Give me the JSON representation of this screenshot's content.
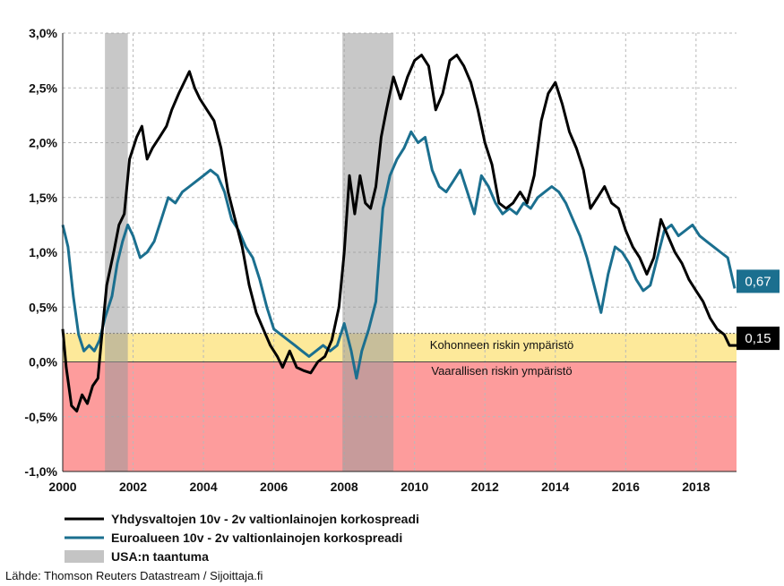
{
  "chart_data": {
    "type": "line",
    "ylim": [
      -1.0,
      3.0
    ],
    "xlim": [
      2000,
      2019.15
    ],
    "y_ticks": [
      "-1,0%",
      "-0,5%",
      "0,0%",
      "0,5%",
      "1,0%",
      "1,5%",
      "2,0%",
      "2,5%",
      "3,0%"
    ],
    "y_tick_values": [
      -1.0,
      -0.5,
      0.0,
      0.5,
      1.0,
      1.5,
      2.0,
      2.5,
      3.0
    ],
    "x_ticks": [
      "2000",
      "2002",
      "2004",
      "2006",
      "2008",
      "2010",
      "2012",
      "2014",
      "2016",
      "2018"
    ],
    "x_tick_values": [
      2000,
      2002,
      2004,
      2006,
      2008,
      2010,
      2012,
      2014,
      2016,
      2018
    ],
    "grid": true,
    "recessions": [
      [
        2001.2,
        2001.85
      ],
      [
        2007.95,
        2009.4
      ]
    ],
    "zones": [
      {
        "label": "Kohonneen riskin ympäristö",
        "from": 0.0,
        "to": 0.26,
        "color": "#fde99a"
      },
      {
        "label": "Vaarallisen riskin ympäristö",
        "from": -1.0,
        "to": 0.0,
        "color": "#fd9c9c"
      }
    ],
    "series": [
      {
        "name": "Yhdysvaltojen 10v - 2v valtionlainojen korkospreadi",
        "color": "#000000",
        "end_label": "0,15",
        "end_value": 0.15,
        "points": [
          [
            2000.0,
            0.3
          ],
          [
            2000.1,
            -0.05
          ],
          [
            2000.25,
            -0.4
          ],
          [
            2000.4,
            -0.45
          ],
          [
            2000.55,
            -0.3
          ],
          [
            2000.7,
            -0.38
          ],
          [
            2000.85,
            -0.22
          ],
          [
            2001.0,
            -0.15
          ],
          [
            2001.1,
            0.2
          ],
          [
            2001.25,
            0.7
          ],
          [
            2001.45,
            1.0
          ],
          [
            2001.6,
            1.25
          ],
          [
            2001.75,
            1.35
          ],
          [
            2001.9,
            1.85
          ],
          [
            2002.1,
            2.05
          ],
          [
            2002.25,
            2.15
          ],
          [
            2002.4,
            1.85
          ],
          [
            2002.55,
            1.95
          ],
          [
            2002.75,
            2.05
          ],
          [
            2002.95,
            2.15
          ],
          [
            2003.1,
            2.3
          ],
          [
            2003.3,
            2.45
          ],
          [
            2003.45,
            2.55
          ],
          [
            2003.6,
            2.65
          ],
          [
            2003.75,
            2.5
          ],
          [
            2003.9,
            2.4
          ],
          [
            2004.1,
            2.3
          ],
          [
            2004.3,
            2.2
          ],
          [
            2004.5,
            1.95
          ],
          [
            2004.7,
            1.55
          ],
          [
            2004.9,
            1.3
          ],
          [
            2005.1,
            1.05
          ],
          [
            2005.3,
            0.7
          ],
          [
            2005.5,
            0.45
          ],
          [
            2005.7,
            0.3
          ],
          [
            2005.9,
            0.15
          ],
          [
            2006.1,
            0.05
          ],
          [
            2006.25,
            -0.05
          ],
          [
            2006.45,
            0.1
          ],
          [
            2006.65,
            -0.05
          ],
          [
            2006.85,
            -0.08
          ],
          [
            2007.05,
            -0.1
          ],
          [
            2007.25,
            0.0
          ],
          [
            2007.45,
            0.05
          ],
          [
            2007.65,
            0.2
          ],
          [
            2007.85,
            0.5
          ],
          [
            2008.0,
            1.0
          ],
          [
            2008.15,
            1.7
          ],
          [
            2008.3,
            1.35
          ],
          [
            2008.45,
            1.7
          ],
          [
            2008.6,
            1.45
          ],
          [
            2008.75,
            1.4
          ],
          [
            2008.9,
            1.6
          ],
          [
            2009.05,
            2.05
          ],
          [
            2009.2,
            2.3
          ],
          [
            2009.4,
            2.6
          ],
          [
            2009.6,
            2.4
          ],
          [
            2009.8,
            2.6
          ],
          [
            2010.0,
            2.75
          ],
          [
            2010.2,
            2.8
          ],
          [
            2010.4,
            2.7
          ],
          [
            2010.6,
            2.3
          ],
          [
            2010.8,
            2.45
          ],
          [
            2011.0,
            2.75
          ],
          [
            2011.2,
            2.8
          ],
          [
            2011.4,
            2.7
          ],
          [
            2011.6,
            2.55
          ],
          [
            2011.8,
            2.3
          ],
          [
            2012.0,
            2.0
          ],
          [
            2012.2,
            1.8
          ],
          [
            2012.4,
            1.45
          ],
          [
            2012.6,
            1.4
          ],
          [
            2012.8,
            1.45
          ],
          [
            2013.0,
            1.55
          ],
          [
            2013.2,
            1.45
          ],
          [
            2013.4,
            1.7
          ],
          [
            2013.6,
            2.2
          ],
          [
            2013.8,
            2.45
          ],
          [
            2014.0,
            2.55
          ],
          [
            2014.2,
            2.35
          ],
          [
            2014.4,
            2.1
          ],
          [
            2014.6,
            1.95
          ],
          [
            2014.8,
            1.75
          ],
          [
            2015.0,
            1.4
          ],
          [
            2015.2,
            1.5
          ],
          [
            2015.4,
            1.6
          ],
          [
            2015.6,
            1.45
          ],
          [
            2015.8,
            1.4
          ],
          [
            2016.0,
            1.2
          ],
          [
            2016.2,
            1.05
          ],
          [
            2016.4,
            0.95
          ],
          [
            2016.6,
            0.8
          ],
          [
            2016.8,
            0.95
          ],
          [
            2017.0,
            1.3
          ],
          [
            2017.2,
            1.15
          ],
          [
            2017.4,
            1.0
          ],
          [
            2017.6,
            0.9
          ],
          [
            2017.8,
            0.75
          ],
          [
            2018.0,
            0.65
          ],
          [
            2018.2,
            0.55
          ],
          [
            2018.4,
            0.4
          ],
          [
            2018.6,
            0.3
          ],
          [
            2018.8,
            0.25
          ],
          [
            2018.95,
            0.15
          ],
          [
            2019.15,
            0.15
          ]
        ]
      },
      {
        "name": "Euroalueen 10v - 2v valtionlainojen korkospreadi",
        "color": "#1b6f8f",
        "end_label": "0,67",
        "end_value": 0.67,
        "points": [
          [
            2000.0,
            1.25
          ],
          [
            2000.15,
            1.05
          ],
          [
            2000.3,
            0.6
          ],
          [
            2000.45,
            0.25
          ],
          [
            2000.6,
            0.1
          ],
          [
            2000.75,
            0.15
          ],
          [
            2000.9,
            0.1
          ],
          [
            2001.05,
            0.2
          ],
          [
            2001.2,
            0.4
          ],
          [
            2001.4,
            0.6
          ],
          [
            2001.55,
            0.9
          ],
          [
            2001.7,
            1.1
          ],
          [
            2001.85,
            1.25
          ],
          [
            2002.0,
            1.15
          ],
          [
            2002.2,
            0.95
          ],
          [
            2002.4,
            1.0
          ],
          [
            2002.6,
            1.1
          ],
          [
            2002.8,
            1.3
          ],
          [
            2003.0,
            1.5
          ],
          [
            2003.2,
            1.45
          ],
          [
            2003.4,
            1.55
          ],
          [
            2003.6,
            1.6
          ],
          [
            2003.8,
            1.65
          ],
          [
            2004.0,
            1.7
          ],
          [
            2004.2,
            1.75
          ],
          [
            2004.4,
            1.7
          ],
          [
            2004.6,
            1.55
          ],
          [
            2004.8,
            1.3
          ],
          [
            2005.0,
            1.2
          ],
          [
            2005.2,
            1.05
          ],
          [
            2005.4,
            0.95
          ],
          [
            2005.6,
            0.75
          ],
          [
            2005.8,
            0.5
          ],
          [
            2006.0,
            0.3
          ],
          [
            2006.2,
            0.25
          ],
          [
            2006.4,
            0.2
          ],
          [
            2006.6,
            0.15
          ],
          [
            2006.8,
            0.1
          ],
          [
            2007.0,
            0.05
          ],
          [
            2007.2,
            0.1
          ],
          [
            2007.4,
            0.15
          ],
          [
            2007.6,
            0.1
          ],
          [
            2007.8,
            0.15
          ],
          [
            2008.0,
            0.35
          ],
          [
            2008.2,
            0.1
          ],
          [
            2008.35,
            -0.15
          ],
          [
            2008.5,
            0.1
          ],
          [
            2008.7,
            0.3
          ],
          [
            2008.9,
            0.55
          ],
          [
            2009.1,
            1.4
          ],
          [
            2009.3,
            1.7
          ],
          [
            2009.5,
            1.85
          ],
          [
            2009.7,
            1.95
          ],
          [
            2009.9,
            2.1
          ],
          [
            2010.1,
            2.0
          ],
          [
            2010.3,
            2.05
          ],
          [
            2010.5,
            1.75
          ],
          [
            2010.7,
            1.6
          ],
          [
            2010.9,
            1.55
          ],
          [
            2011.1,
            1.65
          ],
          [
            2011.3,
            1.75
          ],
          [
            2011.5,
            1.55
          ],
          [
            2011.7,
            1.35
          ],
          [
            2011.9,
            1.7
          ],
          [
            2012.1,
            1.6
          ],
          [
            2012.3,
            1.45
          ],
          [
            2012.5,
            1.35
          ],
          [
            2012.7,
            1.4
          ],
          [
            2012.9,
            1.35
          ],
          [
            2013.1,
            1.45
          ],
          [
            2013.3,
            1.4
          ],
          [
            2013.5,
            1.5
          ],
          [
            2013.7,
            1.55
          ],
          [
            2013.9,
            1.6
          ],
          [
            2014.1,
            1.55
          ],
          [
            2014.3,
            1.45
          ],
          [
            2014.5,
            1.3
          ],
          [
            2014.7,
            1.15
          ],
          [
            2014.9,
            0.95
          ],
          [
            2015.1,
            0.7
          ],
          [
            2015.3,
            0.45
          ],
          [
            2015.5,
            0.8
          ],
          [
            2015.7,
            1.05
          ],
          [
            2015.9,
            1.0
          ],
          [
            2016.1,
            0.9
          ],
          [
            2016.3,
            0.75
          ],
          [
            2016.5,
            0.65
          ],
          [
            2016.7,
            0.7
          ],
          [
            2016.9,
            0.95
          ],
          [
            2017.1,
            1.2
          ],
          [
            2017.3,
            1.25
          ],
          [
            2017.5,
            1.15
          ],
          [
            2017.7,
            1.2
          ],
          [
            2017.9,
            1.25
          ],
          [
            2018.1,
            1.15
          ],
          [
            2018.3,
            1.1
          ],
          [
            2018.5,
            1.05
          ],
          [
            2018.7,
            1.0
          ],
          [
            2018.9,
            0.95
          ],
          [
            2019.1,
            0.67
          ]
        ]
      }
    ],
    "legend": [
      {
        "label": "Yhdysvaltojen 10v - 2v valtionlainojen korkospreadi",
        "color": "#000000",
        "kind": "line"
      },
      {
        "label": "Euroalueen 10v - 2v valtionlainojen korkospreadi",
        "color": "#1b6f8f",
        "kind": "line"
      },
      {
        "label": "USA:n taantuma",
        "color": "#c4c4c4",
        "kind": "box"
      }
    ],
    "legend_position": "bottom-left",
    "source": "Lähde: Thomson Reuters Datastream / Sijoittaja.fi"
  }
}
